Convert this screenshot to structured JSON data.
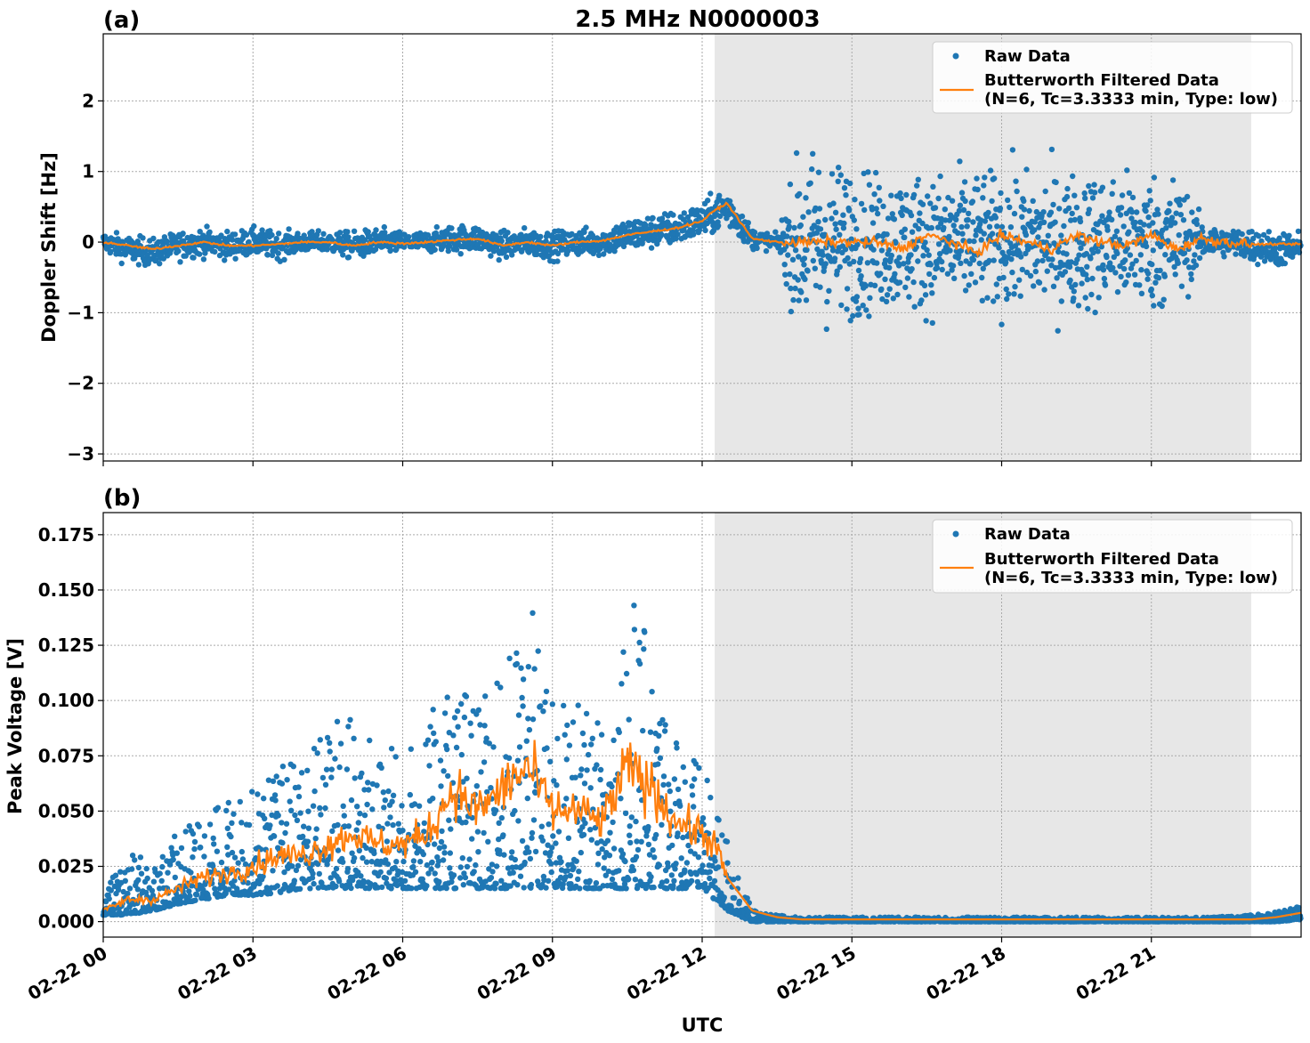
{
  "chart_data": [
    {
      "type": "scatter",
      "panel_label": "(a)",
      "title": "2.5 MHz N0000003",
      "ylabel": "Doppler Shift [Hz]",
      "ylim": [
        -3.1,
        2.95
      ],
      "yticks": [
        2,
        1,
        0,
        -1,
        -2,
        -3
      ],
      "ytick_labels": [
        "2",
        "1",
        "0",
        "−1",
        "−2",
        "−3"
      ],
      "xlim_hours": [
        0,
        24
      ],
      "grid": true,
      "legend_position": "top-right",
      "shaded_interval_hours": [
        12.25,
        23.0
      ],
      "series": [
        {
          "name": "Raw Data",
          "style": "points",
          "color": "#1f77b4",
          "x_hours": [
            0,
            0.5,
            1,
            1.5,
            2,
            2.5,
            3,
            3.5,
            4,
            4.5,
            5,
            5.5,
            6,
            6.5,
            7,
            7.5,
            8,
            8.5,
            9,
            9.5,
            10,
            10.5,
            11,
            11.5,
            12,
            12.5,
            13,
            13.5,
            14,
            14.5,
            15,
            15.5,
            16,
            16.5,
            17,
            17.5,
            18,
            18.5,
            19,
            19.5,
            20,
            20.5,
            21,
            21.5,
            22,
            22.5,
            23,
            23.5,
            24
          ],
          "y_center": [
            0,
            -0.1,
            -0.15,
            -0.05,
            0,
            -0.05,
            0,
            -0.05,
            0,
            0,
            -0.05,
            0,
            0,
            0,
            0.05,
            0.05,
            -0.05,
            0,
            -0.05,
            0,
            0,
            0.1,
            0.15,
            0.2,
            0.3,
            0.5,
            0.05,
            0,
            0,
            0,
            0,
            0,
            0,
            0,
            0,
            0,
            0,
            0,
            0,
            0,
            0,
            0,
            0,
            0,
            0,
            0,
            -0.05,
            -0.1,
            -0.1
          ],
          "y_spread": [
            0.15,
            0.2,
            0.2,
            0.2,
            0.2,
            0.2,
            0.2,
            0.2,
            0.15,
            0.15,
            0.2,
            0.2,
            0.15,
            0.15,
            0.2,
            0.2,
            0.2,
            0.2,
            0.2,
            0.2,
            0.2,
            0.25,
            0.25,
            0.25,
            0.25,
            0.3,
            0.15,
            0.1,
            1.4,
            1.2,
            1.1,
            1.0,
            1.0,
            1.0,
            1.0,
            1.0,
            1.0,
            1.0,
            1.0,
            1.0,
            1.0,
            1.0,
            1.0,
            1.0,
            0.3,
            0.2,
            0.25,
            0.25,
            0.25
          ]
        },
        {
          "name": "Butterworth Filtered Data\n(N=6, Tc=3.3333 min, Type: low)",
          "style": "line",
          "color": "#ff7f0e",
          "x_hours": [
            0,
            0.5,
            1,
            1.5,
            2,
            2.5,
            3,
            3.5,
            4,
            4.5,
            5,
            5.5,
            6,
            6.5,
            7,
            7.5,
            8,
            8.5,
            9,
            9.5,
            10,
            10.5,
            11,
            11.5,
            12,
            12.25,
            12.5,
            13,
            13.5,
            14,
            14.5,
            15,
            15.5,
            16,
            16.5,
            17,
            17.5,
            18,
            18.5,
            19,
            19.5,
            20,
            20.5,
            21,
            21.5,
            22,
            22.5,
            23,
            23.5,
            24
          ],
          "y": [
            0,
            -0.05,
            -0.1,
            -0.05,
            0,
            -0.05,
            -0.05,
            -0.03,
            0,
            0,
            -0.05,
            0,
            -0.02,
            0,
            0.03,
            0.05,
            -0.05,
            0,
            -0.05,
            0,
            0.02,
            0.1,
            0.15,
            0.2,
            0.3,
            0.45,
            0.55,
            0.05,
            0,
            0,
            0,
            0,
            0,
            -0.1,
            0.1,
            0,
            -0.15,
            0.1,
            0,
            -0.1,
            0.1,
            0,
            -0.05,
            0.1,
            -0.1,
            0.05,
            0,
            -0.03,
            -0.03,
            -0.03
          ]
        }
      ]
    },
    {
      "type": "scatter",
      "panel_label": "(b)",
      "xlabel": "UTC",
      "ylabel": "Peak Voltage [V]",
      "ylim": [
        -0.007,
        0.185
      ],
      "yticks": [
        0.175,
        0.15,
        0.125,
        0.1,
        0.075,
        0.05,
        0.025,
        0.0
      ],
      "ytick_labels": [
        "0.175",
        "0.150",
        "0.125",
        "0.100",
        "0.075",
        "0.050",
        "0.025",
        "0.000"
      ],
      "xlim_hours": [
        0,
        24
      ],
      "xticks_hours": [
        0,
        3,
        6,
        9,
        12,
        15,
        18,
        21
      ],
      "xtick_labels": [
        "02-22 00",
        "02-22 03",
        "02-22 06",
        "02-22 09",
        "02-22 12",
        "02-22 15",
        "02-22 18",
        "02-22 21"
      ],
      "grid": true,
      "legend_position": "top-right",
      "shaded_interval_hours": [
        12.25,
        23.0
      ],
      "series": [
        {
          "name": "Raw Data",
          "style": "points",
          "color": "#1f77b4",
          "x_hours": [
            0,
            0.5,
            1,
            1.5,
            2,
            2.5,
            3,
            3.5,
            4,
            4.5,
            5,
            5.5,
            6,
            6.5,
            7,
            7.5,
            8,
            8.5,
            9,
            9.5,
            10,
            10.5,
            11,
            11.5,
            12,
            12.5,
            13,
            13.5,
            14,
            15,
            16,
            17,
            18,
            19,
            20,
            21,
            22,
            23,
            23.5,
            24
          ],
          "y_low": [
            0.003,
            0.003,
            0.005,
            0.008,
            0.01,
            0.012,
            0.012,
            0.013,
            0.015,
            0.015,
            0.015,
            0.015,
            0.015,
            0.015,
            0.015,
            0.015,
            0.015,
            0.015,
            0.015,
            0.015,
            0.015,
            0.015,
            0.015,
            0.015,
            0.015,
            0.005,
            0,
            0,
            0,
            0,
            0,
            0,
            0,
            0,
            0,
            0,
            0,
            0,
            0,
            0.001
          ],
          "y_high": [
            0.015,
            0.03,
            0.03,
            0.04,
            0.05,
            0.055,
            0.06,
            0.07,
            0.08,
            0.09,
            0.1,
            0.08,
            0.08,
            0.09,
            0.12,
            0.1,
            0.11,
            0.15,
            0.1,
            0.1,
            0.09,
            0.16,
            0.12,
            0.09,
            0.07,
            0.04,
            0.005,
            0.003,
            0.002,
            0.002,
            0.002,
            0.002,
            0.002,
            0.002,
            0.002,
            0.002,
            0.002,
            0.003,
            0.005,
            0.007
          ]
        },
        {
          "name": "Butterworth Filtered Data\n(N=6, Tc=3.3333 min, Type: low)",
          "style": "line",
          "color": "#ff7f0e",
          "x_hours": [
            0,
            0.5,
            1,
            1.5,
            2,
            2.5,
            3,
            3.5,
            4,
            4.5,
            5,
            5.5,
            6,
            6.5,
            7,
            7.5,
            8,
            8.5,
            9,
            9.5,
            10,
            10.5,
            11,
            11.5,
            12,
            12.25,
            12.5,
            13,
            13.5,
            14,
            15,
            16,
            17,
            18,
            19,
            20,
            21,
            22,
            23,
            23.5,
            24
          ],
          "y": [
            0.005,
            0.01,
            0.01,
            0.015,
            0.02,
            0.022,
            0.025,
            0.03,
            0.03,
            0.035,
            0.04,
            0.035,
            0.035,
            0.04,
            0.06,
            0.05,
            0.06,
            0.07,
            0.05,
            0.05,
            0.045,
            0.07,
            0.06,
            0.045,
            0.04,
            0.035,
            0.02,
            0.005,
            0.002,
            0.001,
            0.001,
            0.001,
            0.001,
            0.001,
            0.001,
            0.001,
            0.001,
            0.001,
            0.001,
            0.002,
            0.004
          ]
        }
      ]
    }
  ]
}
